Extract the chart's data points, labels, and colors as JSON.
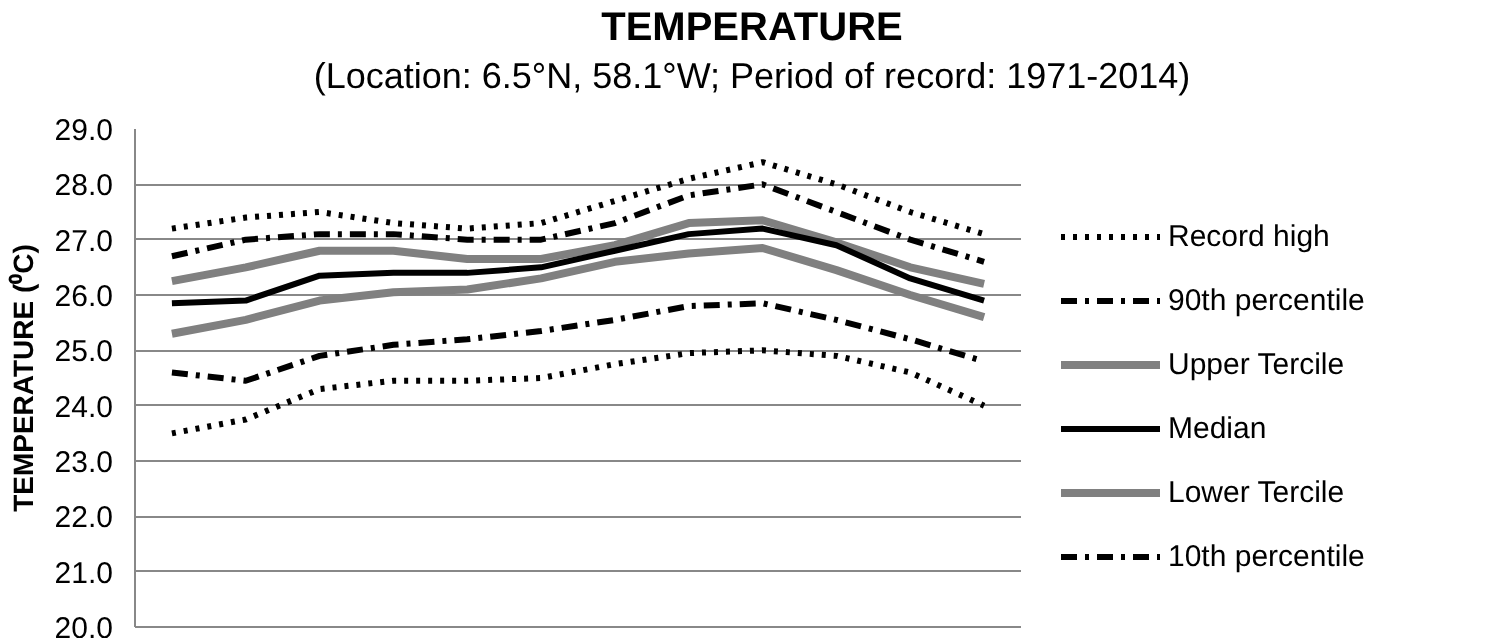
{
  "chart_data": {
    "type": "line",
    "title": "TEMPERATURE",
    "subtitle": "(Location: 6.5°N, 58.1°W; Period of record: 1971-2014)",
    "ylabel": "TEMPERATURE (⁰C)",
    "categories": [
      null,
      null,
      null,
      null,
      null,
      null,
      null,
      null,
      null,
      null,
      null,
      null
    ],
    "ylim": [
      20,
      29
    ],
    "yticks": [
      {
        "value": 20,
        "label": "20.0"
      },
      {
        "value": 21,
        "label": "21.0"
      },
      {
        "value": 22,
        "label": "22.0"
      },
      {
        "value": 23,
        "label": "23.0"
      },
      {
        "value": 24,
        "label": "24.0"
      },
      {
        "value": 25,
        "label": "25.0"
      },
      {
        "value": 26,
        "label": "26.0"
      },
      {
        "value": 27,
        "label": "27.0"
      },
      {
        "value": 28,
        "label": "28.0"
      },
      {
        "value": 29,
        "label": "29.0"
      }
    ],
    "grid": "y",
    "legend": "right",
    "tick_labels": "y",
    "series": [
      {
        "name": "Record high",
        "color": "#000000",
        "line_style": "dotted",
        "values": [
          27.2,
          27.4,
          27.5,
          27.3,
          27.2,
          27.3,
          27.7,
          28.1,
          28.4,
          28.0,
          27.5,
          27.1
        ]
      },
      {
        "name": "90th percentile",
        "color": "#000000",
        "line_style": "dashdot",
        "values": [
          26.7,
          27.0,
          27.1,
          27.1,
          27.0,
          27.0,
          27.3,
          27.8,
          28.0,
          27.5,
          27.0,
          26.6
        ]
      },
      {
        "name": "Upper Tercile",
        "color": "#808080",
        "line_style": "solid",
        "values": [
          26.25,
          26.5,
          26.8,
          26.8,
          26.65,
          26.65,
          26.9,
          27.3,
          27.35,
          26.95,
          26.5,
          26.2
        ]
      },
      {
        "name": "Median",
        "color": "#000000",
        "line_style": "solid",
        "values": [
          25.85,
          25.9,
          26.35,
          26.4,
          26.4,
          26.5,
          26.8,
          27.1,
          27.2,
          26.9,
          26.3,
          25.9
        ]
      },
      {
        "name": "Lower Tercile",
        "color": "#808080",
        "line_style": "solid",
        "values": [
          25.3,
          25.55,
          25.9,
          26.05,
          26.1,
          26.3,
          26.6,
          26.75,
          26.85,
          26.45,
          26.0,
          25.6
        ]
      },
      {
        "name": "10th percentile",
        "color": "#000000",
        "line_style": "dashdot",
        "values": [
          24.6,
          24.45,
          24.9,
          25.1,
          25.2,
          25.35,
          25.55,
          25.8,
          25.85,
          25.55,
          25.2,
          24.8
        ]
      },
      {
        "color": "#000000",
        "line_style": "dotted",
        "values": [
          23.5,
          23.75,
          24.3,
          24.45,
          24.45,
          24.5,
          24.75,
          24.95,
          25.0,
          24.9,
          24.6,
          24.0
        ]
      }
    ]
  }
}
